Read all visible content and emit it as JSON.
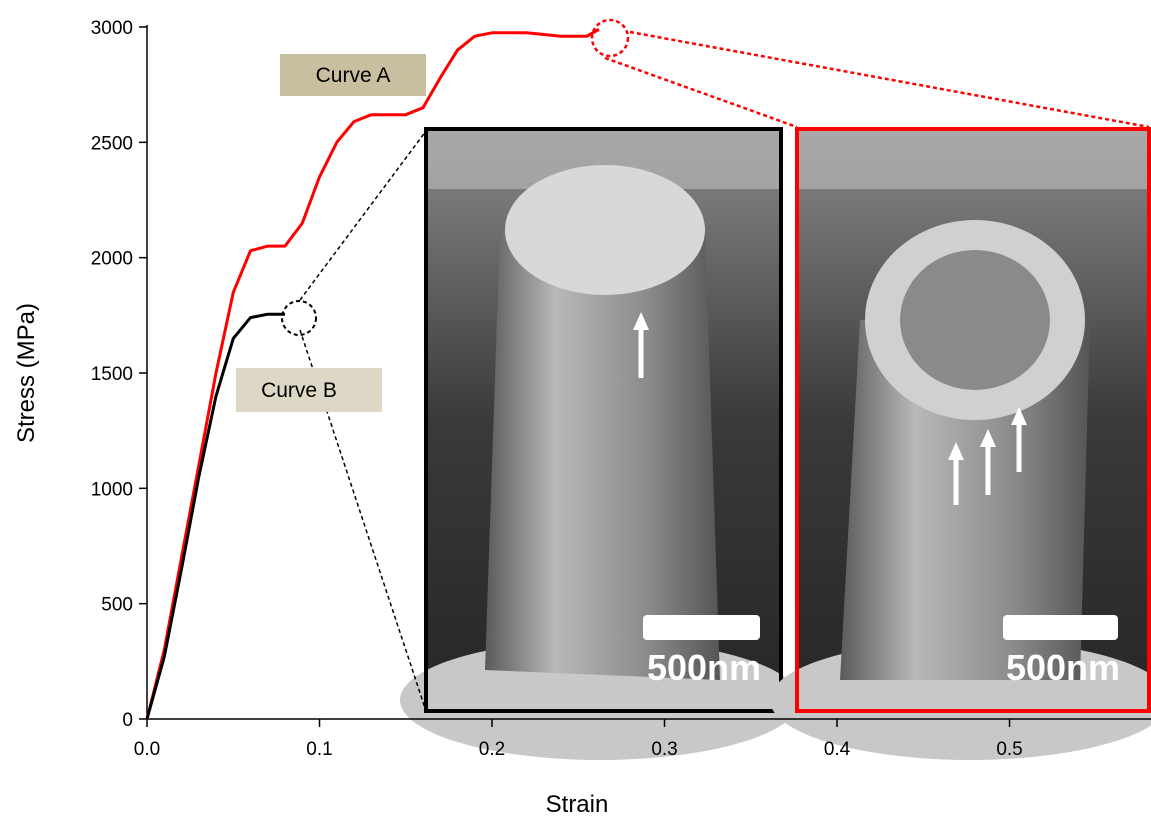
{
  "chart_data": {
    "type": "line",
    "x_label": "Strain",
    "y_label": "Stress (MPa)",
    "xlim": [
      0,
      0.582
    ],
    "ylim": [
      0,
      3000
    ],
    "xticks": [
      {
        "value": 0,
        "label": "0.0"
      },
      0.1,
      0.2,
      0.3,
      0.4,
      0.5
    ],
    "yticks": [
      0,
      500,
      1000,
      1500,
      2000,
      2500,
      3000
    ],
    "series": [
      {
        "name": "Curve A",
        "color": "#ff0000",
        "x": [
          0,
          0.01,
          0.02,
          0.03,
          0.04,
          0.05,
          0.06,
          0.07,
          0.08,
          0.09,
          0.1,
          0.11,
          0.12,
          0.13,
          0.15,
          0.16,
          0.17,
          0.18,
          0.19,
          0.2,
          0.22,
          0.24,
          0.255,
          0.262
        ],
        "values": [
          0,
          300,
          700,
          1100,
          1500,
          1850,
          2030,
          2050,
          2050,
          2150,
          2350,
          2500,
          2590,
          2620,
          2620,
          2650,
          2780,
          2900,
          2960,
          2975,
          2975,
          2960,
          2960,
          2990
        ]
      },
      {
        "name": "Curve B",
        "color": "#000000",
        "x": [
          0,
          0.01,
          0.02,
          0.03,
          0.04,
          0.05,
          0.06,
          0.07,
          0.08
        ],
        "values": [
          0,
          270,
          650,
          1050,
          1400,
          1650,
          1740,
          1755,
          1755
        ]
      }
    ],
    "insets": [
      {
        "scale_bar": "500nm"
      },
      {
        "scale_bar": "500nm"
      }
    ]
  }
}
